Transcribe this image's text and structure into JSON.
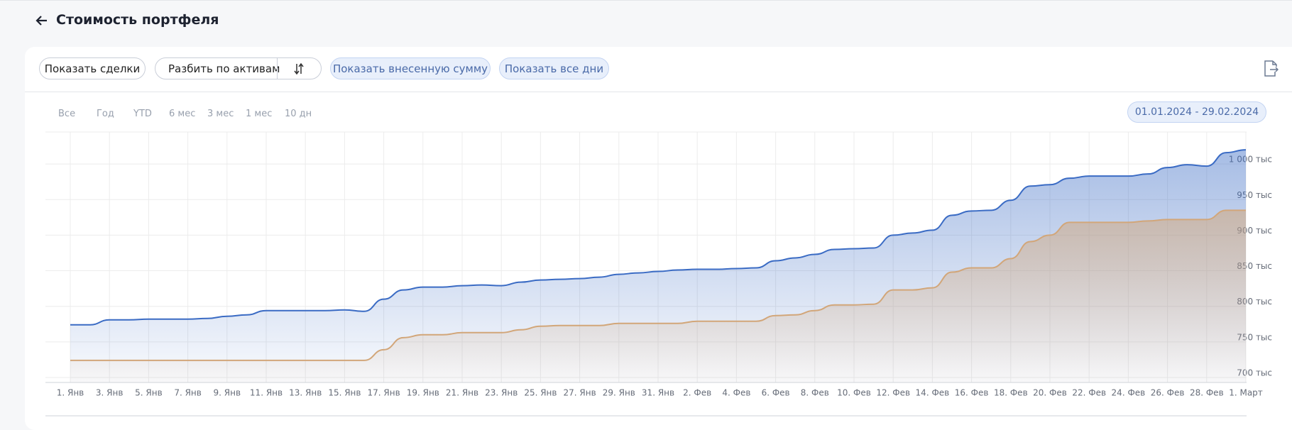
{
  "header": {
    "title": "Стоимость портфеля"
  },
  "toolbar": {
    "buttons": [
      "Показать сделки",
      "Разбить по активам"
    ],
    "toggles": [
      "Показать внесенную сумму",
      "Показать все дни"
    ]
  },
  "ranges": [
    "Все",
    "Год",
    "YTD",
    "6 мес",
    "3 мес",
    "1 мес",
    "10 дн"
  ],
  "date_range": "01.01.2024 - 29.02.2024",
  "chart_data": {
    "type": "area",
    "categories": [
      "1. Янв",
      null,
      "3. Янв",
      null,
      "5. Янв",
      null,
      "7. Янв",
      null,
      "9. Янв",
      null,
      "11. Янв",
      null,
      "13. Янв",
      null,
      "15. Янв",
      null,
      "17. Янв",
      null,
      "19. Янв",
      null,
      "21. Янв",
      null,
      "23. Янв",
      null,
      "25. Янв",
      null,
      "27. Янв",
      null,
      "29. Янв",
      null,
      "31. Янв",
      null,
      "2. Фев",
      null,
      "4. Фев",
      null,
      "6. Фев",
      null,
      "8. Фев",
      null,
      "10. Фев",
      null,
      "12. Фев",
      null,
      "14. Фев",
      null,
      "16. Фев",
      null,
      "18. Фев",
      null,
      "20. Фев",
      null,
      "22. Фев",
      null,
      "24. Фев",
      null,
      "26. Фев",
      null,
      "28. Фев",
      null,
      "1. Март"
    ],
    "series": [
      {
        "color": "#3a6bc4",
        "values": [
          774,
          774,
          781,
          781,
          782,
          782,
          782,
          783,
          786,
          788,
          794,
          794,
          794,
          794,
          795,
          793,
          810,
          823,
          827,
          827,
          829,
          830,
          829,
          834,
          837,
          838,
          839,
          841,
          845,
          847,
          849,
          851,
          852,
          852,
          853,
          854,
          864,
          868,
          873,
          880,
          881,
          882,
          900,
          903,
          907,
          928,
          934,
          935,
          949,
          969,
          971,
          980,
          983,
          983,
          983,
          986,
          995,
          999,
          997,
          1016,
          1020
        ]
      },
      {
        "color": "#d2a679",
        "values": [
          724,
          724,
          724,
          724,
          724,
          724,
          724,
          724,
          724,
          724,
          724,
          724,
          724,
          724,
          724,
          724,
          739,
          756,
          760,
          760,
          763,
          763,
          763,
          767,
          772,
          773,
          773,
          773,
          776,
          776,
          776,
          776,
          779,
          779,
          779,
          779,
          787,
          788,
          794,
          802,
          802,
          803,
          823,
          823,
          826,
          848,
          854,
          854,
          867,
          891,
          900,
          918,
          918,
          918,
          918,
          920,
          922,
          922,
          922,
          935,
          935
        ]
      }
    ],
    "ylim": [
      693,
      1045
    ],
    "yticks": [
      {
        "value": 700,
        "label": "700 тыс"
      },
      {
        "value": 750,
        "label": "750 тыс"
      },
      {
        "value": 800,
        "label": "800 тыс"
      },
      {
        "value": 850,
        "label": "850 тыс"
      },
      {
        "value": 900,
        "label": "900 тыс"
      },
      {
        "value": 950,
        "label": "950 тыс"
      },
      {
        "value": 1000,
        "label": "1 000 тыс"
      }
    ],
    "grid": true
  }
}
